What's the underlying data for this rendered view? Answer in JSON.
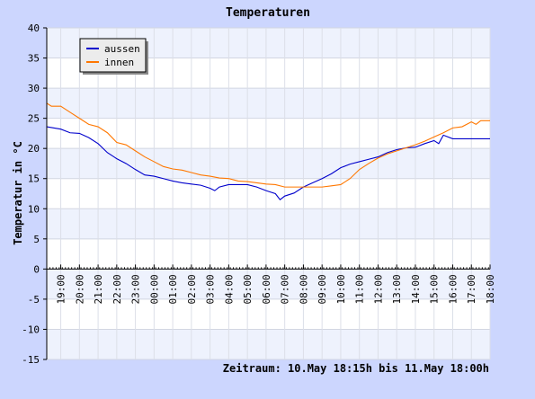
{
  "chart_data": {
    "type": "line",
    "title": "Temperaturen",
    "ylabel": "Temperatur in °C",
    "footer": "Zeitraum: 10.May 18:15h bis 11.May 18:00h",
    "ylim": [
      -15,
      40
    ],
    "yticks": [
      -15,
      -10,
      -5,
      0,
      5,
      10,
      15,
      20,
      25,
      30,
      35,
      40
    ],
    "x_range": [
      18.25,
      42.0
    ],
    "x_tick_labels": [
      "19:00",
      "20:00",
      "21:00",
      "22:00",
      "23:00",
      "00:00",
      "01:00",
      "02:00",
      "03:00",
      "04:00",
      "05:00",
      "06:00",
      "07:00",
      "08:00",
      "09:00",
      "10:00",
      "11:00",
      "12:00",
      "13:00",
      "14:00",
      "15:00",
      "16:00",
      "17:00",
      "18:00"
    ],
    "legend_position": "top-left",
    "grid": true,
    "series": [
      {
        "name": "aussen",
        "color": "#0000cc",
        "points": [
          [
            18.25,
            23.6
          ],
          [
            19.0,
            23.2
          ],
          [
            19.5,
            22.6
          ],
          [
            20.0,
            22.5
          ],
          [
            20.5,
            21.8
          ],
          [
            21.0,
            20.8
          ],
          [
            21.5,
            19.3
          ],
          [
            22.0,
            18.3
          ],
          [
            22.5,
            17.5
          ],
          [
            23.0,
            16.5
          ],
          [
            23.5,
            15.6
          ],
          [
            24.0,
            15.4
          ],
          [
            24.5,
            15.0
          ],
          [
            25.0,
            14.6
          ],
          [
            25.5,
            14.3
          ],
          [
            26.0,
            14.1
          ],
          [
            26.5,
            13.9
          ],
          [
            27.0,
            13.4
          ],
          [
            27.25,
            13.0
          ],
          [
            27.5,
            13.6
          ],
          [
            28.0,
            14.0
          ],
          [
            28.5,
            14.0
          ],
          [
            29.0,
            14.0
          ],
          [
            29.5,
            13.6
          ],
          [
            30.0,
            13.0
          ],
          [
            30.5,
            12.5
          ],
          [
            30.75,
            11.5
          ],
          [
            31.0,
            12.1
          ],
          [
            31.5,
            12.6
          ],
          [
            32.0,
            13.6
          ],
          [
            32.5,
            14.3
          ],
          [
            33.0,
            15.0
          ],
          [
            33.5,
            15.8
          ],
          [
            34.0,
            16.8
          ],
          [
            34.5,
            17.4
          ],
          [
            35.0,
            17.8
          ],
          [
            35.5,
            18.2
          ],
          [
            36.0,
            18.6
          ],
          [
            36.5,
            19.3
          ],
          [
            37.0,
            19.8
          ],
          [
            37.5,
            20.1
          ],
          [
            38.0,
            20.2
          ],
          [
            38.5,
            20.8
          ],
          [
            39.0,
            21.3
          ],
          [
            39.25,
            20.8
          ],
          [
            39.5,
            22.2
          ],
          [
            40.0,
            21.6
          ],
          [
            40.5,
            21.6
          ],
          [
            41.0,
            21.6
          ],
          [
            41.5,
            21.6
          ],
          [
            42.0,
            21.6
          ]
        ]
      },
      {
        "name": "innen",
        "color": "#ff7700",
        "points": [
          [
            18.25,
            27.5
          ],
          [
            18.5,
            27.0
          ],
          [
            19.0,
            27.0
          ],
          [
            19.5,
            26.0
          ],
          [
            20.0,
            25.0
          ],
          [
            20.5,
            24.0
          ],
          [
            21.0,
            23.6
          ],
          [
            21.5,
            22.6
          ],
          [
            22.0,
            21.0
          ],
          [
            22.5,
            20.6
          ],
          [
            23.0,
            19.6
          ],
          [
            23.5,
            18.6
          ],
          [
            24.0,
            17.8
          ],
          [
            24.5,
            17.0
          ],
          [
            25.0,
            16.6
          ],
          [
            25.5,
            16.4
          ],
          [
            26.0,
            16.0
          ],
          [
            26.5,
            15.6
          ],
          [
            27.0,
            15.4
          ],
          [
            27.5,
            15.1
          ],
          [
            28.0,
            15.0
          ],
          [
            28.5,
            14.6
          ],
          [
            29.0,
            14.5
          ],
          [
            29.5,
            14.3
          ],
          [
            30.0,
            14.1
          ],
          [
            30.5,
            14.0
          ],
          [
            31.0,
            13.6
          ],
          [
            31.5,
            13.6
          ],
          [
            32.0,
            13.6
          ],
          [
            32.5,
            13.6
          ],
          [
            33.0,
            13.6
          ],
          [
            33.5,
            13.8
          ],
          [
            34.0,
            14.0
          ],
          [
            34.5,
            15.0
          ],
          [
            35.0,
            16.5
          ],
          [
            35.5,
            17.5
          ],
          [
            36.0,
            18.4
          ],
          [
            36.5,
            19.1
          ],
          [
            37.0,
            19.6
          ],
          [
            37.5,
            20.1
          ],
          [
            38.0,
            20.6
          ],
          [
            38.5,
            21.2
          ],
          [
            39.0,
            21.9
          ],
          [
            39.5,
            22.6
          ],
          [
            40.0,
            23.4
          ],
          [
            40.5,
            23.6
          ],
          [
            41.0,
            24.4
          ],
          [
            41.25,
            24.0
          ],
          [
            41.5,
            24.6
          ],
          [
            42.0,
            24.6
          ]
        ]
      }
    ]
  }
}
